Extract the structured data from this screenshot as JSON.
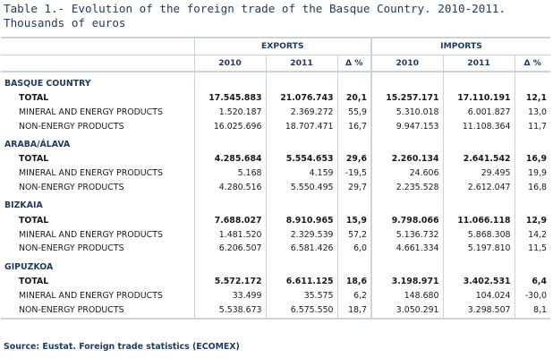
{
  "title_line1": "Table 1.- Evolution of the foreign trade of the Basque Country. 2010-2011.",
  "title_line2": "Thousands of euros",
  "headers": {
    "exports": "EXPORTS",
    "imports": "IMPORTS",
    "y2010": "2010",
    "y2011": "2011",
    "delta": "Δ %"
  },
  "regions": [
    {
      "name": "BASQUE COUNTRY",
      "rows": [
        {
          "label": "TOTAL",
          "e2010": "17.545.883",
          "e2011": "21.076.743",
          "ed": "20,1",
          "i2010": "15.257.171",
          "i2011": "17.110.191",
          "id": "12,1"
        },
        {
          "label": "MINERAL AND ENERGY PRODUCTS",
          "e2010": "1.520.187",
          "e2011": "2.369.272",
          "ed": "55,9",
          "i2010": "5.310.018",
          "i2011": "6.001.827",
          "id": "13,0"
        },
        {
          "label": "NON-ENERGY PRODUCTS",
          "e2010": "16.025.696",
          "e2011": "18.707.471",
          "ed": "16,7",
          "i2010": "9.947.153",
          "i2011": "11.108.364",
          "id": "11,7"
        }
      ]
    },
    {
      "name": "ARABA/ÁLAVA",
      "rows": [
        {
          "label": "TOTAL",
          "e2010": "4.285.684",
          "e2011": "5.554.653",
          "ed": "29,6",
          "i2010": "2.260.134",
          "i2011": "2.641.542",
          "id": "16,9"
        },
        {
          "label": "MINERAL AND ENERGY PRODUCTS",
          "e2010": "5.168",
          "e2011": "4.159",
          "ed": "-19,5",
          "i2010": "24.606",
          "i2011": "29.495",
          "id": "19,9"
        },
        {
          "label": "NON-ENERGY PRODUCTS",
          "e2010": "4.280.516",
          "e2011": "5.550.495",
          "ed": "29,7",
          "i2010": "2.235.528",
          "i2011": "2.612.047",
          "id": "16,8"
        }
      ]
    },
    {
      "name": "BIZKAIA",
      "rows": [
        {
          "label": "TOTAL",
          "e2010": "7.688.027",
          "e2011": "8.910.965",
          "ed": "15,9",
          "i2010": "9.798.066",
          "i2011": "11.066.118",
          "id": "12,9"
        },
        {
          "label": "MINERAL AND ENERGY PRODUCTS",
          "e2010": "1.481.520",
          "e2011": "2.329.539",
          "ed": "57,2",
          "i2010": "5.136.732",
          "i2011": "5.868.308",
          "id": "14,2"
        },
        {
          "label": "NON-ENERGY PRODUCTS",
          "e2010": "6.206.507",
          "e2011": "6.581.426",
          "ed": "6,0",
          "i2010": "4.661.334",
          "i2011": "5.197.810",
          "id": "11,5"
        }
      ]
    },
    {
      "name": "GIPUZKOA",
      "rows": [
        {
          "label": "TOTAL",
          "e2010": "5.572.172",
          "e2011": "6.611.125",
          "ed": "18,6",
          "i2010": "3.198.971",
          "i2011": "3.402.531",
          "id": "6,4"
        },
        {
          "label": "MINERAL AND ENERGY PRODUCTS",
          "e2010": "33.499",
          "e2011": "35.575",
          "ed": "6,2",
          "i2010": "148.680",
          "i2011": "104.024",
          "id": "-30,0"
        },
        {
          "label": "NON-ENERGY PRODUCTS",
          "e2010": "5.538.673",
          "e2011": "6.575.550",
          "ed": "18,7",
          "i2010": "3.050.291",
          "i2011": "3.298.507",
          "id": "8,1"
        }
      ]
    }
  ],
  "source": "Source: Eustat. Foreign trade statistics (ECOMEX)"
}
